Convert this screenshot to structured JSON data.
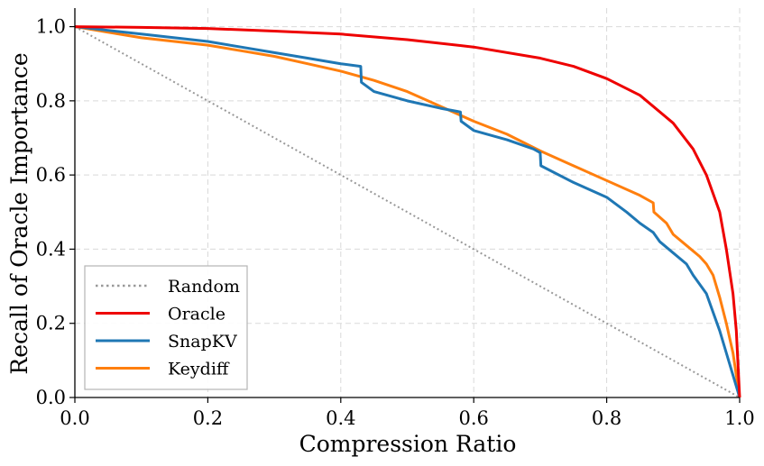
{
  "chart_data": {
    "type": "line",
    "title": "",
    "xlabel": "Compression Ratio",
    "ylabel": "Recall of Oracle Importance",
    "xlim": [
      0,
      1
    ],
    "ylim": [
      0,
      1.05
    ],
    "xticks": [
      "0.0",
      "0.2",
      "0.4",
      "0.6",
      "0.8",
      "1.0"
    ],
    "yticks": [
      "0.0",
      "0.2",
      "0.4",
      "0.6",
      "0.8",
      "1.0"
    ],
    "grid": true,
    "legend_position": "lower-left",
    "series": [
      {
        "name": "Random",
        "color": "#999999",
        "style": "dotted",
        "x": [
          0,
          1
        ],
        "y": [
          1,
          0
        ]
      },
      {
        "name": "Oracle",
        "color": "#ee0000",
        "style": "solid",
        "x": [
          0,
          0.1,
          0.2,
          0.3,
          0.4,
          0.5,
          0.6,
          0.7,
          0.75,
          0.8,
          0.85,
          0.9,
          0.93,
          0.95,
          0.97,
          0.98,
          0.99,
          0.995,
          1.0
        ],
        "y": [
          1.0,
          0.998,
          0.995,
          0.988,
          0.98,
          0.965,
          0.945,
          0.915,
          0.893,
          0.86,
          0.815,
          0.74,
          0.67,
          0.6,
          0.5,
          0.4,
          0.28,
          0.18,
          0.0
        ]
      },
      {
        "name": "SnapKV",
        "color": "#1f77b4",
        "style": "solid",
        "x": [
          0,
          0.05,
          0.1,
          0.15,
          0.2,
          0.25,
          0.3,
          0.35,
          0.4,
          0.43,
          0.431,
          0.45,
          0.5,
          0.55,
          0.58,
          0.581,
          0.6,
          0.65,
          0.69,
          0.7,
          0.701,
          0.75,
          0.8,
          0.83,
          0.85,
          0.87,
          0.88,
          0.9,
          0.92,
          0.93,
          0.95,
          0.96,
          0.97,
          0.98,
          0.99,
          1.0
        ],
        "y": [
          1.0,
          0.99,
          0.98,
          0.97,
          0.96,
          0.945,
          0.93,
          0.915,
          0.9,
          0.893,
          0.85,
          0.825,
          0.8,
          0.78,
          0.77,
          0.745,
          0.72,
          0.695,
          0.67,
          0.66,
          0.625,
          0.58,
          0.54,
          0.5,
          0.47,
          0.445,
          0.42,
          0.39,
          0.36,
          0.33,
          0.28,
          0.23,
          0.18,
          0.12,
          0.06,
          0.0
        ]
      },
      {
        "name": "Keydiff",
        "color": "#ff7f0e",
        "style": "solid",
        "x": [
          0,
          0.05,
          0.1,
          0.15,
          0.2,
          0.25,
          0.3,
          0.35,
          0.4,
          0.45,
          0.5,
          0.55,
          0.6,
          0.65,
          0.7,
          0.75,
          0.8,
          0.85,
          0.87,
          0.871,
          0.89,
          0.9,
          0.92,
          0.94,
          0.95,
          0.96,
          0.97,
          0.98,
          0.99,
          1.0
        ],
        "y": [
          1.0,
          0.985,
          0.97,
          0.96,
          0.95,
          0.935,
          0.92,
          0.9,
          0.88,
          0.855,
          0.825,
          0.785,
          0.745,
          0.71,
          0.665,
          0.625,
          0.585,
          0.545,
          0.525,
          0.5,
          0.47,
          0.44,
          0.41,
          0.38,
          0.36,
          0.33,
          0.27,
          0.2,
          0.12,
          0.0
        ]
      }
    ]
  }
}
